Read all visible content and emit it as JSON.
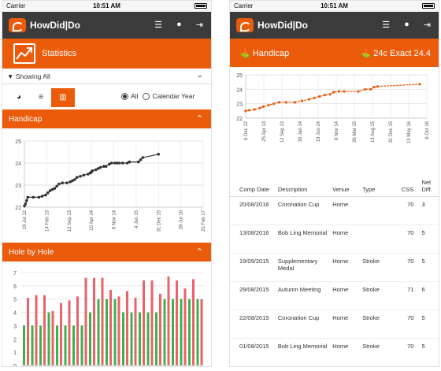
{
  "status": {
    "carrier": "Carrier",
    "time": "10:51 AM"
  },
  "app": {
    "logo_text": "HowDid|Do"
  },
  "nav_icons": [
    "menu-icon",
    "user-icon",
    "logout-icon"
  ],
  "left_screen": {
    "title": "Statistics",
    "filter": {
      "label": "Showing All",
      "value": "All"
    },
    "view_icons": [
      "dashboard-icon",
      "list-icon",
      "bar-chart-icon"
    ],
    "radio": {
      "all_label": "All",
      "calendar_label": "Calendar Year",
      "selected": "All"
    },
    "handicap_section": {
      "label": "Handicap"
    },
    "hole_section": {
      "label": "Hole by Hole"
    }
  },
  "right_screen": {
    "handicap_label": "Handicap",
    "handicap_value": "24c Exact 24.4",
    "table": {
      "headers": [
        "Comp Date",
        "Description",
        "Venue",
        "Type",
        "CSS",
        "Net Diff."
      ],
      "rows": [
        [
          "20/08/2016",
          "Coronation Cup",
          "Home",
          "",
          "70",
          "3"
        ],
        [
          "13/08/2016",
          "Bob Ling Memorial",
          "Home",
          "",
          "70",
          "5"
        ],
        [
          "19/09/2015",
          "Supplementary Medal",
          "Home",
          "Stroke",
          "70",
          "5"
        ],
        [
          "29/08/2015",
          "Autumn Meeting",
          "Home",
          "Stroke",
          "71",
          "6"
        ],
        [
          "22/08/2015",
          "Coronation Cup",
          "Home",
          "Stroke",
          "70",
          "5"
        ],
        [
          "01/08/2015",
          "Bob Ling Memorial",
          "Home",
          "Stroke",
          "70",
          "5"
        ]
      ]
    }
  },
  "colors": {
    "accent": "#ea5b0c",
    "navbar": "#3b3b3b",
    "red_bar": "#e8636a",
    "green_bar": "#3fb050"
  },
  "chart_data": [
    {
      "type": "line",
      "name": "handicap-left",
      "ylim": [
        22,
        25
      ],
      "yticks": [
        "22",
        "23",
        "24",
        "25"
      ],
      "xticks": [
        "19 Jul 12",
        "14 Feb 13",
        "12 Sep 13",
        "10 Apr 14",
        "6 Nov 14",
        "4 Jun 15",
        "31 Dec 15",
        "28 Jul 16",
        "23 Feb 17"
      ],
      "x": [
        0,
        0.1,
        0.2,
        0.3,
        0.8,
        1.3,
        1.6,
        1.9,
        2.1,
        2.3,
        2.5,
        2.7,
        2.9,
        3.1,
        3.4,
        3.8,
        4.1,
        4.3,
        4.5,
        4.7,
        5.0,
        5.3,
        5.7,
        5.9,
        6.0,
        6.1,
        6.4,
        6.6,
        6.8,
        7.1,
        7.3,
        7.6,
        7.8,
        8.1,
        8.3,
        8.5,
        8.8,
        9.2,
        9.4,
        10.2,
        10.4,
        10.6,
        12.0
      ],
      "y": [
        22.05,
        22.15,
        22.3,
        22.45,
        22.45,
        22.45,
        22.5,
        22.55,
        22.65,
        22.75,
        22.8,
        22.85,
        22.95,
        23.05,
        23.1,
        23.1,
        23.15,
        23.2,
        23.25,
        23.35,
        23.4,
        23.45,
        23.5,
        23.55,
        23.6,
        23.65,
        23.7,
        23.75,
        23.8,
        23.85,
        23.85,
        23.95,
        24.0,
        24.0,
        24.0,
        24.0,
        24.0,
        24.0,
        24.05,
        24.05,
        24.15,
        24.25,
        24.4
      ]
    },
    {
      "type": "bar",
      "name": "hole-by-hole",
      "ylim": [
        0,
        7
      ],
      "yticks": [
        "0",
        "1",
        "2",
        "3",
        "4",
        "5",
        "6",
        "7"
      ],
      "series": [
        {
          "values": [
            3,
            3,
            3,
            4,
            3,
            3,
            3,
            3,
            4,
            5,
            5,
            5,
            4,
            4,
            4,
            4,
            4,
            5,
            5,
            5,
            5,
            5
          ]
        },
        {
          "values": [
            5.1,
            5.3,
            5.3,
            4.1,
            4.7,
            4.9,
            5.2,
            6.6,
            6.6,
            6.6,
            5.7,
            5.2,
            5.6,
            5.1,
            6.4,
            6.4,
            5.4,
            6.7,
            6.4,
            5.8,
            6.5,
            5.0
          ]
        }
      ]
    },
    {
      "type": "line",
      "name": "handicap-right",
      "ylim": [
        22,
        25
      ],
      "yticks": [
        "22",
        "23",
        "24",
        "25"
      ],
      "xticks": [
        "6 Dec 12",
        "25 Apr 13",
        "12 Sep 13",
        "30 Jan 14",
        "19 Jun 14",
        "6 Nov 14",
        "26 Mar 15",
        "13 Aug 15",
        "31 Dec 15",
        "19 May 16",
        "6 Oct 16"
      ],
      "x": [
        0,
        0.2,
        0.5,
        0.8,
        1.0,
        1.3,
        1.6,
        1.9,
        2.3,
        2.8,
        3.2,
        3.6,
        3.9,
        4.2,
        4.5,
        4.8,
        5.0,
        5.3,
        5.6,
        6.4,
        6.8,
        7.1,
        7.3,
        7.5,
        9.9
      ],
      "y": [
        22.5,
        22.55,
        22.6,
        22.7,
        22.8,
        22.9,
        23.0,
        23.1,
        23.1,
        23.1,
        23.2,
        23.3,
        23.4,
        23.5,
        23.6,
        23.65,
        23.8,
        23.85,
        23.85,
        23.85,
        24.0,
        24.0,
        24.15,
        24.2,
        24.35
      ]
    }
  ]
}
